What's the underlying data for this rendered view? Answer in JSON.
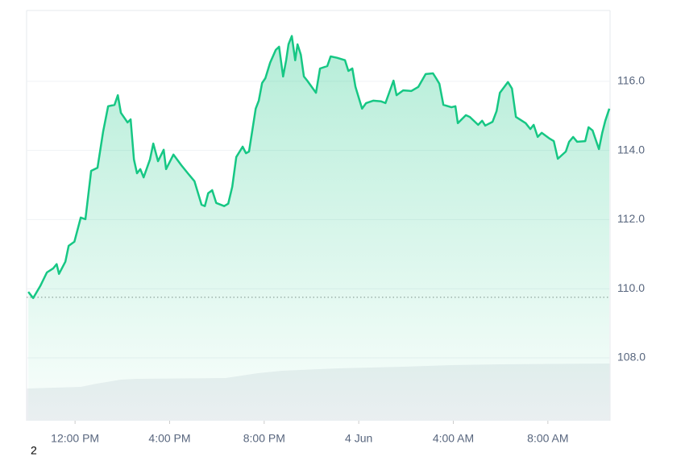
{
  "chart_data": {
    "type": "line",
    "color": "#16c784",
    "grid": true,
    "reference_line": 109.75,
    "x": [
      10.02,
      10.23,
      10.53,
      10.81,
      11.08,
      11.22,
      11.32,
      11.59,
      11.73,
      11.97,
      12.24,
      12.44,
      12.68,
      12.95,
      13.19,
      13.4,
      13.67,
      13.81,
      13.94,
      14.22,
      14.35,
      14.49,
      14.62,
      14.76,
      14.9,
      15.17,
      15.31,
      15.51,
      15.75,
      15.85,
      16.16,
      16.5,
      16.77,
      17.05,
      17.35,
      17.49,
      17.63,
      17.8,
      17.97,
      18.31,
      18.48,
      18.65,
      18.82,
      19.09,
      19.23,
      19.36,
      19.64,
      19.77,
      19.91,
      20.05,
      20.25,
      20.49,
      20.63,
      20.8,
      20.93,
      21.03,
      21.17,
      21.31,
      21.41,
      21.55,
      21.68,
      21.82,
      22.06,
      22.19,
      22.36,
      22.67,
      22.81,
      23.08,
      23.42,
      23.56,
      23.73,
      23.86,
      24.14,
      24.31,
      24.61,
      24.95,
      25.13,
      25.47,
      25.6,
      25.88,
      26.22,
      26.52,
      26.83,
      27.14,
      27.27,
      27.41,
      27.58,
      27.92,
      28.09,
      28.19,
      28.53,
      28.7,
      29.05,
      29.22,
      29.35,
      29.66,
      29.83,
      29.97,
      30.31,
      30.48,
      30.65,
      31.06,
      31.26,
      31.4,
      31.57,
      31.74,
      32.08,
      32.25,
      32.42,
      32.76,
      32.9,
      33.07,
      33.24,
      33.58,
      33.72,
      33.89,
      34.16,
      34.3,
      34.43,
      34.6
    ],
    "values": [
      109.91,
      109.73,
      110.08,
      110.47,
      110.59,
      110.71,
      110.43,
      110.78,
      111.24,
      111.36,
      112.06,
      112.01,
      113.41,
      113.5,
      114.55,
      115.28,
      115.32,
      115.6,
      115.09,
      114.81,
      114.9,
      113.74,
      113.34,
      113.46,
      113.22,
      113.74,
      114.2,
      113.69,
      114.02,
      113.46,
      113.88,
      113.57,
      113.34,
      113.11,
      112.43,
      112.39,
      112.76,
      112.85,
      112.48,
      112.39,
      112.46,
      112.95,
      113.81,
      114.11,
      113.92,
      113.97,
      115.21,
      115.44,
      115.95,
      116.09,
      116.54,
      116.91,
      117.0,
      116.14,
      116.61,
      117.07,
      117.31,
      116.61,
      117.07,
      116.77,
      116.14,
      116.02,
      115.79,
      115.67,
      116.37,
      116.44,
      116.72,
      116.68,
      116.61,
      116.3,
      116.37,
      115.84,
      115.21,
      115.37,
      115.44,
      115.42,
      115.37,
      116.02,
      115.6,
      115.74,
      115.72,
      115.84,
      116.21,
      116.23,
      116.09,
      115.93,
      115.32,
      115.25,
      115.28,
      114.79,
      115.02,
      114.97,
      114.74,
      114.86,
      114.72,
      114.83,
      115.14,
      115.67,
      115.98,
      115.79,
      114.97,
      114.79,
      114.62,
      114.74,
      114.39,
      114.51,
      114.34,
      114.27,
      113.76,
      113.97,
      114.25,
      114.39,
      114.25,
      114.27,
      114.67,
      114.58,
      114.04,
      114.51,
      114.86,
      115.21
    ],
    "xlim": [
      9.95,
      34.63
    ],
    "xticks": [
      {
        "value": 12,
        "label": "12:00 PM"
      },
      {
        "value": 16,
        "label": "4:00 PM"
      },
      {
        "value": 20,
        "label": "8:00 PM"
      },
      {
        "value": 24,
        "label": "4 Jun"
      },
      {
        "value": 28,
        "label": "4:00 AM"
      },
      {
        "value": 32,
        "label": "8:00 AM"
      }
    ],
    "ylim": [
      106.18,
      118.05
    ],
    "yticks": [
      {
        "value": 108,
        "label": "108.0"
      },
      {
        "value": 110,
        "label": "110.0"
      },
      {
        "value": 112,
        "label": "112.0"
      },
      {
        "value": 114,
        "label": "114.0"
      },
      {
        "value": 116,
        "label": "116.0"
      }
    ]
  },
  "footer_text": "2"
}
